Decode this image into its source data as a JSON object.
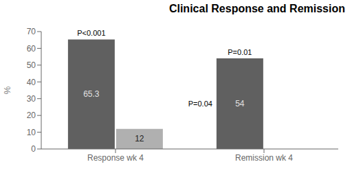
{
  "chart_data": {
    "type": "bar",
    "title": "Clinical Response and Remission",
    "ylabel": "%",
    "categories": [
      "Response wk 4",
      "Remission wk 4"
    ],
    "series": [
      {
        "color": "#606060",
        "values": [
          65.3,
          54
        ],
        "data_labels": true
      },
      {
        "color": "#b0b0b0",
        "values": [
          12,
          0
        ],
        "data_labels": true
      }
    ],
    "ylim": [
      0,
      70
    ],
    "yticks": [
      0,
      10,
      20,
      30,
      40,
      50,
      60,
      70
    ],
    "grid": false,
    "annotations": [
      {
        "text": "P<0.001",
        "category": "Response wk 4"
      },
      {
        "text": "P=0.01",
        "category": "Remission wk 4"
      },
      {
        "text": "P=0.04",
        "category": "Remission wk 4",
        "y": 27
      }
    ]
  }
}
